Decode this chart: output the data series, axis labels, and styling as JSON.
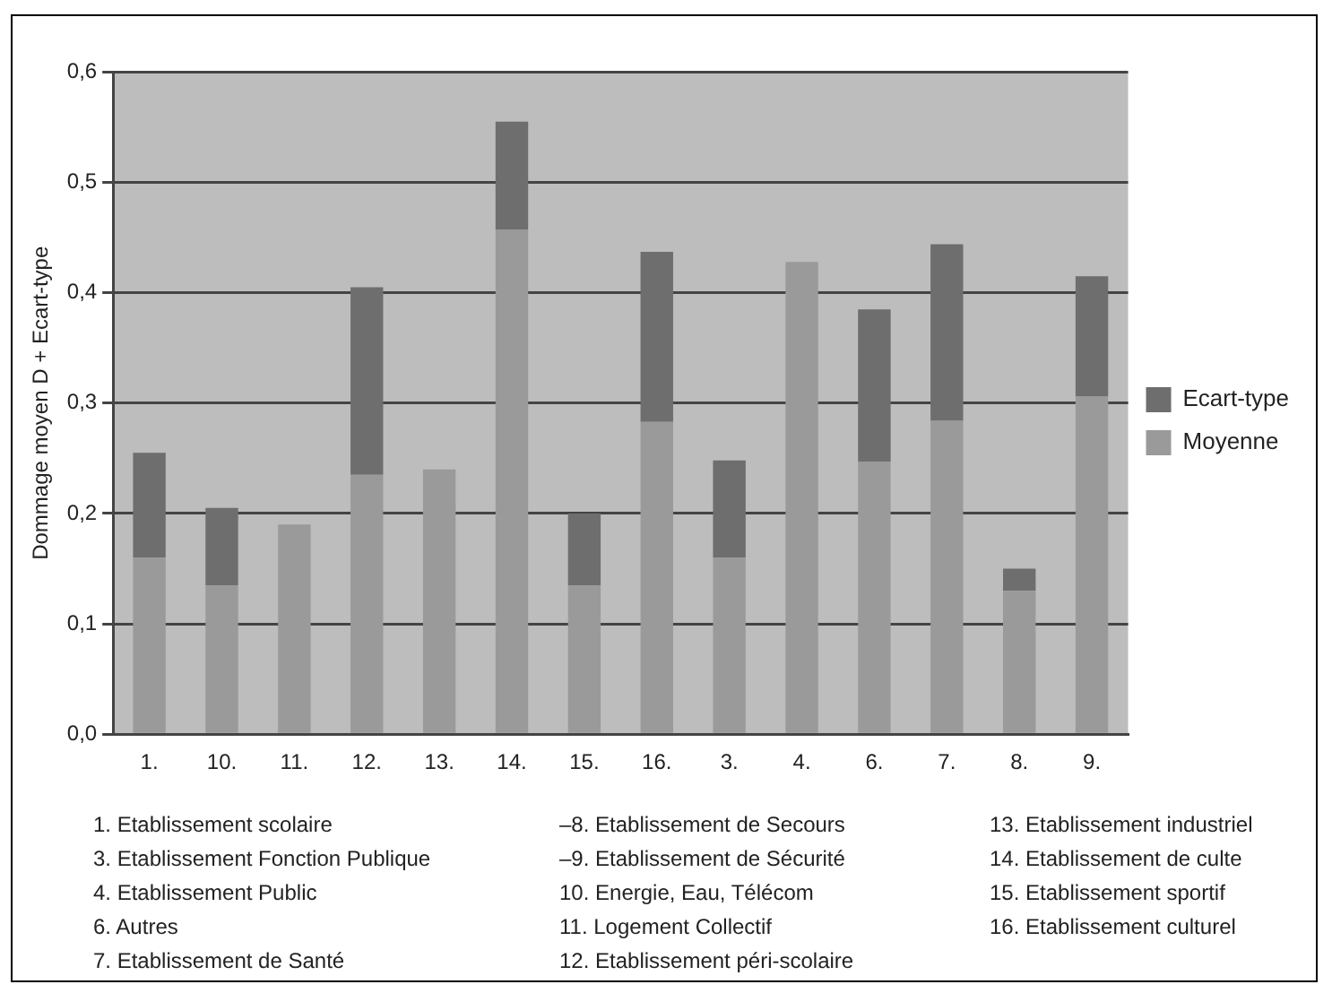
{
  "chart_data": {
    "type": "bar",
    "stacked": true,
    "ylabel": "Dommage moyen D + Ecart-type",
    "categories": [
      "1.",
      "10.",
      "11.",
      "12.",
      "13.",
      "14.",
      "15.",
      "16.",
      "3.",
      "4.",
      "6.",
      "7.",
      "8.",
      "9."
    ],
    "series": [
      {
        "name": "Moyenne",
        "color": "#9a9a9a",
        "values": [
          0.16,
          0.135,
          0.19,
          0.235,
          0.24,
          0.457,
          0.135,
          0.283,
          0.16,
          0.428,
          0.247,
          0.284,
          0.13,
          0.306
        ]
      },
      {
        "name": "Ecart-type",
        "color": "#6e6e6e",
        "values": [
          0.095,
          0.07,
          0,
          0.17,
          0,
          0.098,
          0.065,
          0.154,
          0.088,
          0,
          0.138,
          0.16,
          0.02,
          0.109
        ]
      }
    ],
    "ylim": [
      0,
      0.6
    ],
    "yticks": [
      {
        "value": 0,
        "label": "0,0"
      },
      {
        "value": 0.1,
        "label": "0,1"
      },
      {
        "value": 0.2,
        "label": "0,2"
      },
      {
        "value": 0.3,
        "label": "0,3"
      },
      {
        "value": 0.4,
        "label": "0,4"
      },
      {
        "value": 0.5,
        "label": "0,5"
      },
      {
        "value": 0.6,
        "label": "0,6"
      }
    ],
    "grid": "y",
    "legend": "right",
    "annotations": [
      "1. Etablissement scolaire",
      "3. Etablissement Fonction Publique",
      "4. Etablissement Public",
      "6. Autres",
      "7. Etablissement de Santé",
      "–8. Etablissement de Secours",
      "–9. Etablissement de Sécurité",
      "10. Energie, Eau, Télécom",
      "11. Logement Collectif",
      "12. Etablissement péri-scolaire",
      "13. Etablissement industriel",
      "14. Etablissement de culte",
      "15. Etablissement sportif",
      "16. Etablissement culturel"
    ]
  }
}
